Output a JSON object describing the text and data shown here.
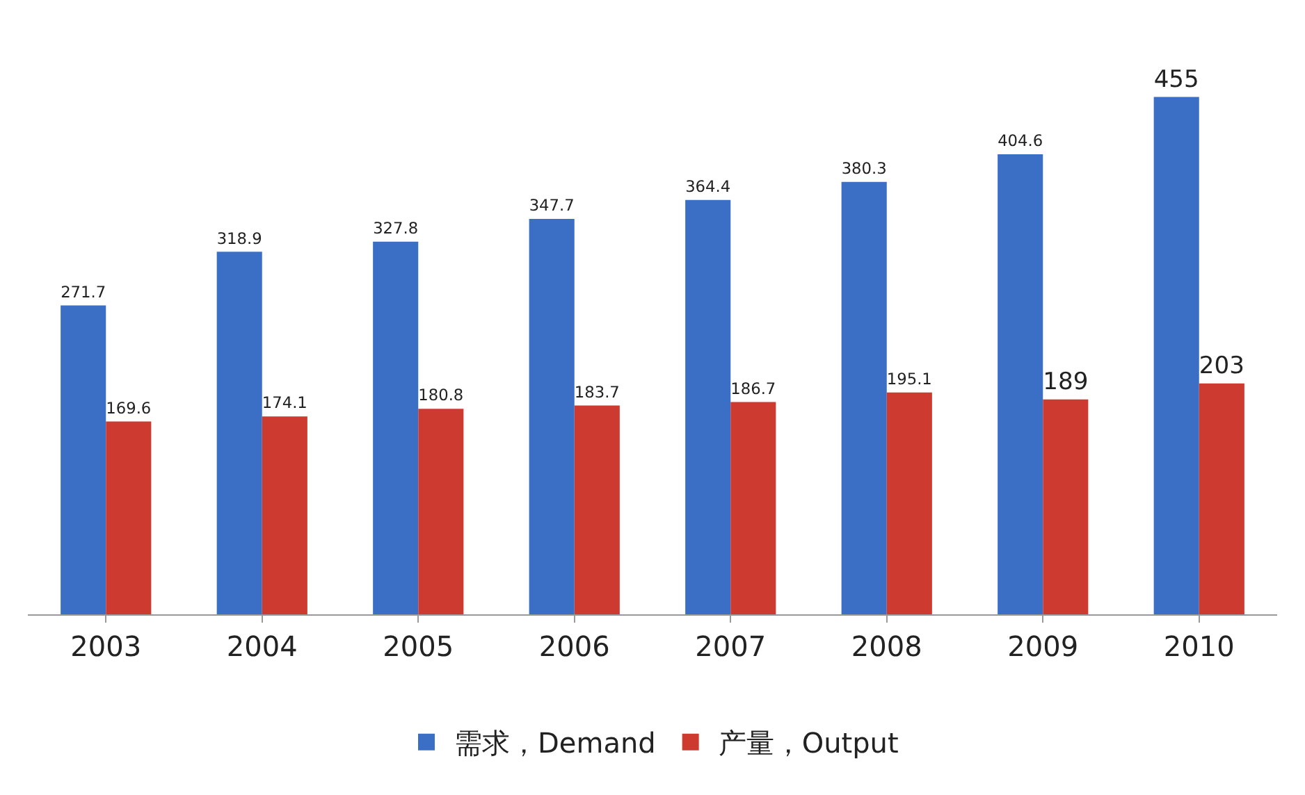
{
  "chart_data": {
    "type": "bar",
    "categories": [
      "2003",
      "2004",
      "2005",
      "2006",
      "2007",
      "2008",
      "2009",
      "2010"
    ],
    "series": [
      {
        "name": "需求，Demand",
        "color": "#3b6fc6",
        "values": [
          271.7,
          318.9,
          327.8,
          347.7,
          364.4,
          380.3,
          404.6,
          455
        ]
      },
      {
        "name": "产量，Output",
        "color": "#cc3a30",
        "values": [
          169.6,
          174.1,
          180.8,
          183.7,
          186.7,
          195.1,
          189,
          203
        ]
      }
    ],
    "data_labels": true,
    "legend": "bottom",
    "grid": false
  }
}
